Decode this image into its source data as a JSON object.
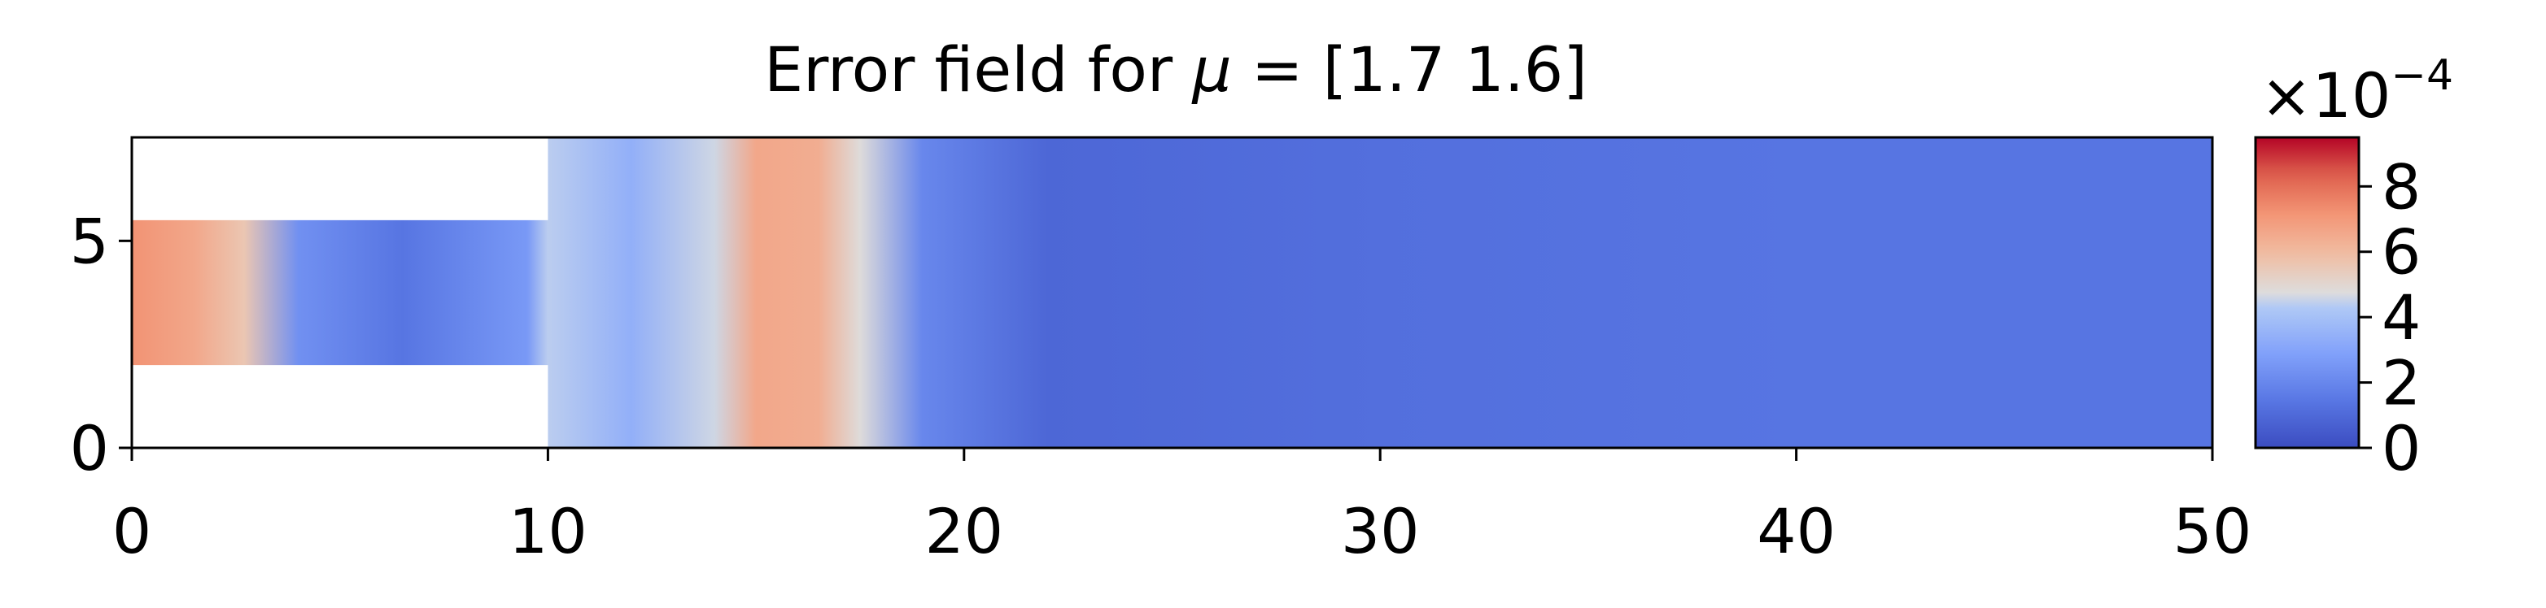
{
  "chart_data": {
    "type": "heatmap",
    "title_prefix": "Error field for ",
    "title_symbol": "μ",
    "title_suffix": " = [1.7 1.6]",
    "xlim": [
      0,
      50
    ],
    "ylim": [
      0,
      7.5
    ],
    "x_ticks": [
      0,
      10,
      20,
      30,
      40,
      50
    ],
    "y_ticks": [
      0,
      5
    ],
    "colorbar": {
      "multiplier_base": "×10",
      "multiplier_exponent": "−4",
      "range": [
        0,
        9.5
      ],
      "ticks": [
        0,
        2,
        4,
        6,
        8
      ],
      "colormap": "coolwarm"
    },
    "domain": {
      "inlet_channel": {
        "x": [
          0,
          10
        ],
        "y": [
          2,
          5.5
        ]
      },
      "main_region": {
        "x": [
          10,
          50
        ],
        "y": [
          0,
          7.5
        ]
      }
    },
    "field_profile": [
      {
        "x": 0,
        "value": 7.2
      },
      {
        "x": 1.5,
        "value": 6.6
      },
      {
        "x": 2.7,
        "value": 5.6
      },
      {
        "x": 4,
        "value": 2.3
      },
      {
        "x": 6.5,
        "value": 1.4
      },
      {
        "x": 9.5,
        "value": 2.6
      },
      {
        "x": 10,
        "value": 4.4
      },
      {
        "x": 12,
        "value": 3.4
      },
      {
        "x": 14,
        "value": 4.6
      },
      {
        "x": 15,
        "value": 6.6
      },
      {
        "x": 16.5,
        "value": 6.4
      },
      {
        "x": 17.5,
        "value": 4.8
      },
      {
        "x": 19,
        "value": 2.0
      },
      {
        "x": 22,
        "value": 0.9
      },
      {
        "x": 30,
        "value": 1.2
      },
      {
        "x": 40,
        "value": 1.4
      },
      {
        "x": 50,
        "value": 1.4
      }
    ]
  }
}
